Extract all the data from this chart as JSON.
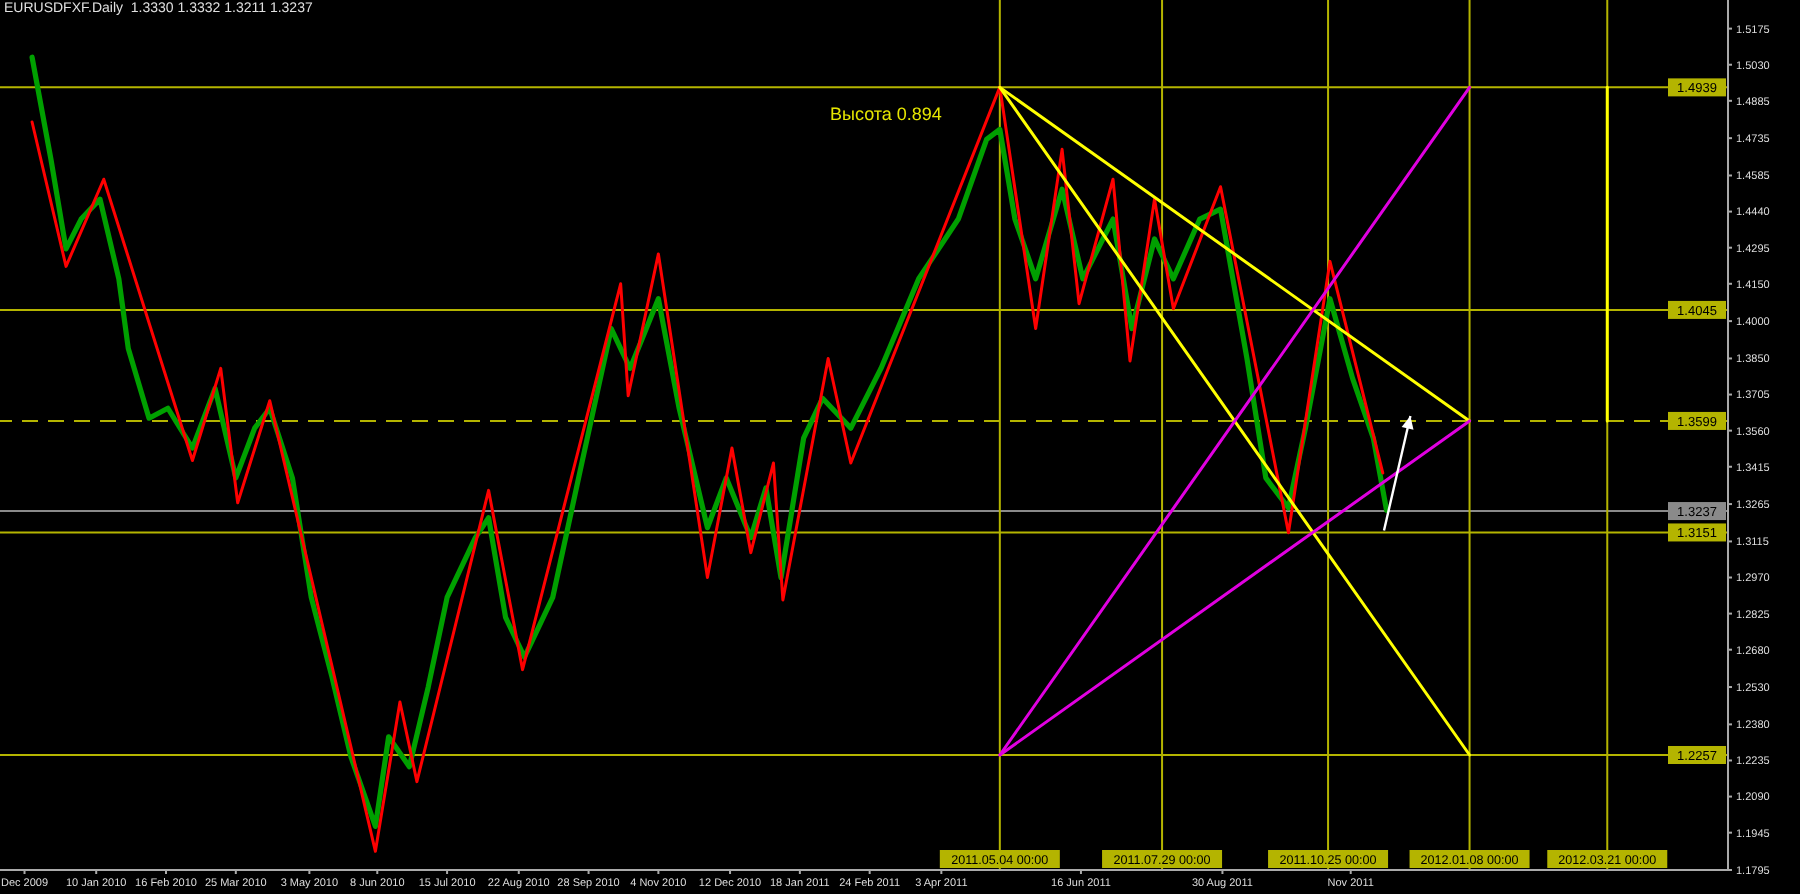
{
  "chart_data": {
    "type": "line",
    "title": "EURUSDFXF.Daily  1.3330 1.3332 1.3211 1.3237",
    "marker": "none",
    "line_style": "solid",
    "xlim": [
      "2009-11-20",
      "2012-05-24"
    ],
    "xticks": [
      {
        "value": "2009-12-03",
        "label": "Dec 2009"
      },
      {
        "value": "2010-01-10",
        "label": "10 Jan 2010"
      },
      {
        "value": "2010-02-16",
        "label": "16 Feb 2010"
      },
      {
        "value": "2010-03-25",
        "label": "25 Mar 2010"
      },
      {
        "value": "2010-05-03",
        "label": "3 May 2010"
      },
      {
        "value": "2010-06-08",
        "label": "8 Jun 2010"
      },
      {
        "value": "2010-07-15",
        "label": "15 Jul 2010"
      },
      {
        "value": "2010-08-22",
        "label": "22 Aug 2010"
      },
      {
        "value": "2010-09-28",
        "label": "28 Sep 2010"
      },
      {
        "value": "2010-11-04",
        "label": "4 Nov 2010"
      },
      {
        "value": "2010-12-12",
        "label": "12 Dec 2010"
      },
      {
        "value": "2011-01-18",
        "label": "18 Jan 2011"
      },
      {
        "value": "2011-02-24",
        "label": "24 Feb 2011"
      },
      {
        "value": "2011-04-03",
        "label": "3 Apr 2011"
      },
      {
        "value": "2011-06-16",
        "label": "16 Jun 2011"
      },
      {
        "value": "2011-08-30",
        "label": "30 Aug 2011"
      },
      {
        "value": "2011-11-06",
        "label": "Nov 2011"
      }
    ],
    "ylim": [
      1.1795,
      1.529
    ],
    "yticks": [
      1.5175,
      {
        "value": 1.503,
        "label": "1.5030"
      },
      1.4885,
      1.4735,
      1.4585,
      {
        "value": 1.444,
        "label": "1.4440"
      },
      1.4295,
      {
        "value": 1.415,
        "label": "1.4150"
      },
      {
        "value": 1.4,
        "label": "1.4000"
      },
      {
        "value": 1.385,
        "label": "1.3850"
      },
      1.3705,
      {
        "value": 1.356,
        "label": "1.3560"
      },
      1.3415,
      1.3265,
      1.3115,
      {
        "value": 1.297,
        "label": "1.2970"
      },
      1.2825,
      {
        "value": 1.268,
        "label": "1.2680"
      },
      {
        "value": 1.253,
        "label": "1.2530"
      },
      {
        "value": 1.238,
        "label": "1.2380"
      },
      1.2235,
      {
        "value": 1.209,
        "label": "1.2090"
      },
      1.1945,
      1.1795
    ],
    "annotations": [
      "Высота 0.894"
    ],
    "ref_lines": [
      {
        "axis": "y",
        "value": 1.4939,
        "label": "1.4939",
        "color": "#b4b400",
        "line_style": "solid"
      },
      {
        "axis": "y",
        "value": 1.4045,
        "label": "1.4045",
        "color": "#b4b400",
        "line_style": "solid"
      },
      {
        "axis": "y",
        "value": 1.3599,
        "label": "1.3599",
        "color": "#b4b400",
        "line_style": "dashed"
      },
      {
        "axis": "y",
        "value": 1.3237,
        "label": "1.3237",
        "color": "#8a8a8a",
        "line_style": "solid"
      },
      {
        "axis": "y",
        "value": 1.3151,
        "label": "1.3151",
        "color": "#b4b400",
        "line_style": "solid"
      },
      {
        "axis": "y",
        "value": 1.2257,
        "label": "1.2257",
        "color": "#b4b400",
        "line_style": "solid"
      },
      {
        "axis": "x",
        "value": "2011-05-04",
        "label": "2011.05.04 00:00",
        "color": "#b4b400",
        "line_style": "solid"
      },
      {
        "axis": "x",
        "value": "2011-07-29",
        "label": "2011.07.29 00:00",
        "color": "#b4b400",
        "line_style": "solid"
      },
      {
        "axis": "x",
        "value": "2011-10-25",
        "label": "2011.10.25 00:00",
        "color": "#b4b400",
        "line_style": "solid"
      },
      {
        "axis": "x",
        "value": "2012-01-08",
        "label": "2012.01.08 00:00",
        "color": "#b4b400",
        "line_style": "solid"
      },
      {
        "axis": "x",
        "value": "2012-03-21",
        "label": "2012.03.21 00:00",
        "color": "#b4b400",
        "line_style": "solid"
      }
    ],
    "series": [
      {
        "color": "#00a000",
        "x": [
          "2009-12-07",
          "2009-12-17",
          "2009-12-25",
          "2010-01-02",
          "2010-01-12",
          "2010-01-22",
          "2010-01-27",
          "2010-02-07",
          "2010-02-17",
          "2010-03-02",
          "2010-03-14",
          "2010-03-25",
          "2010-04-04",
          "2010-04-12",
          "2010-04-24",
          "2010-05-04",
          "2010-05-15",
          "2010-05-25",
          "2010-06-07",
          "2010-06-14",
          "2010-06-25",
          "2010-07-05",
          "2010-07-15",
          "2010-07-30",
          "2010-08-06",
          "2010-08-15",
          "2010-08-25",
          "2010-09-09",
          "2010-09-25",
          "2010-10-10",
          "2010-10-20",
          "2010-11-04",
          "2010-11-15",
          "2010-11-30",
          "2010-12-10",
          "2010-12-23",
          "2010-12-31",
          "2011-01-08",
          "2011-01-20",
          "2011-01-30",
          "2011-02-14",
          "2011-03-02",
          "2011-03-22",
          "2011-04-12",
          "2011-04-27",
          "2011-05-04",
          "2011-05-12",
          "2011-05-23",
          "2011-06-06",
          "2011-06-17",
          "2011-07-03",
          "2011-07-13",
          "2011-07-25",
          "2011-08-04",
          "2011-08-18",
          "2011-08-29",
          "2011-09-12",
          "2011-09-22",
          "2011-10-04",
          "2011-10-13",
          "2011-10-26",
          "2011-11-07",
          "2011-11-18",
          "2011-11-25"
        ],
        "values": [
          1.506,
          1.465,
          1.429,
          1.441,
          1.449,
          1.417,
          1.389,
          1.361,
          1.365,
          1.349,
          1.373,
          1.337,
          1.357,
          1.365,
          1.337,
          1.289,
          1.257,
          1.225,
          1.197,
          1.233,
          1.221,
          1.253,
          1.289,
          1.313,
          1.321,
          1.281,
          1.265,
          1.289,
          1.345,
          1.397,
          1.381,
          1.409,
          1.365,
          1.317,
          1.337,
          1.313,
          1.333,
          1.297,
          1.353,
          1.369,
          1.357,
          1.381,
          1.417,
          1.441,
          1.473,
          1.477,
          1.441,
          1.417,
          1.453,
          1.417,
          1.441,
          1.397,
          1.433,
          1.417,
          1.441,
          1.445,
          1.385,
          1.337,
          1.325,
          1.357,
          1.409,
          1.377,
          1.353,
          1.324
        ]
      },
      {
        "color": "#ff0000",
        "x": [
          "2009-12-07",
          "2009-12-25",
          "2010-01-14",
          "2010-03-02",
          "2010-03-17",
          "2010-03-26",
          "2010-04-12",
          "2010-06-07",
          "2010-06-20",
          "2010-06-29",
          "2010-08-06",
          "2010-08-24",
          "2010-10-15",
          "2010-10-19",
          "2010-11-04",
          "2010-11-30",
          "2010-12-13",
          "2010-12-23",
          "2011-01-04",
          "2011-01-09",
          "2011-02-02",
          "2011-02-14",
          "2011-05-04",
          "2011-05-23",
          "2011-06-06",
          "2011-06-15",
          "2011-07-03",
          "2011-07-12",
          "2011-07-25",
          "2011-08-04",
          "2011-08-29",
          "2011-10-04",
          "2011-10-26",
          "2011-11-23"
        ],
        "values": [
          1.48,
          1.422,
          1.457,
          1.344,
          1.381,
          1.327,
          1.368,
          1.187,
          1.247,
          1.215,
          1.332,
          1.26,
          1.415,
          1.37,
          1.427,
          1.297,
          1.349,
          1.307,
          1.343,
          1.288,
          1.385,
          1.343,
          1.494,
          1.397,
          1.469,
          1.407,
          1.457,
          1.384,
          1.449,
          1.405,
          1.454,
          1.315,
          1.424,
          1.339
        ]
      },
      {
        "color": "#ffff00",
        "x": [
          "2011-05-04",
          "2012-01-08"
        ],
        "values": [
          1.4939,
          1.3599
        ]
      },
      {
        "color": "#ffff00",
        "x": [
          "2011-05-04",
          "2012-01-08"
        ],
        "values": [
          1.4939,
          1.2257
        ]
      },
      {
        "color": "#e000e0",
        "x": [
          "2011-05-04",
          "2012-01-08"
        ],
        "values": [
          1.2257,
          1.4939
        ]
      },
      {
        "color": "#e000e0",
        "x": [
          "2011-05-04",
          "2012-01-08"
        ],
        "values": [
          1.2257,
          1.3599
        ]
      },
      {
        "color": "#ffff00",
        "x": [
          "2012-03-21",
          "2012-03-21"
        ],
        "values": [
          1.4939,
          1.3599
        ]
      }
    ]
  }
}
